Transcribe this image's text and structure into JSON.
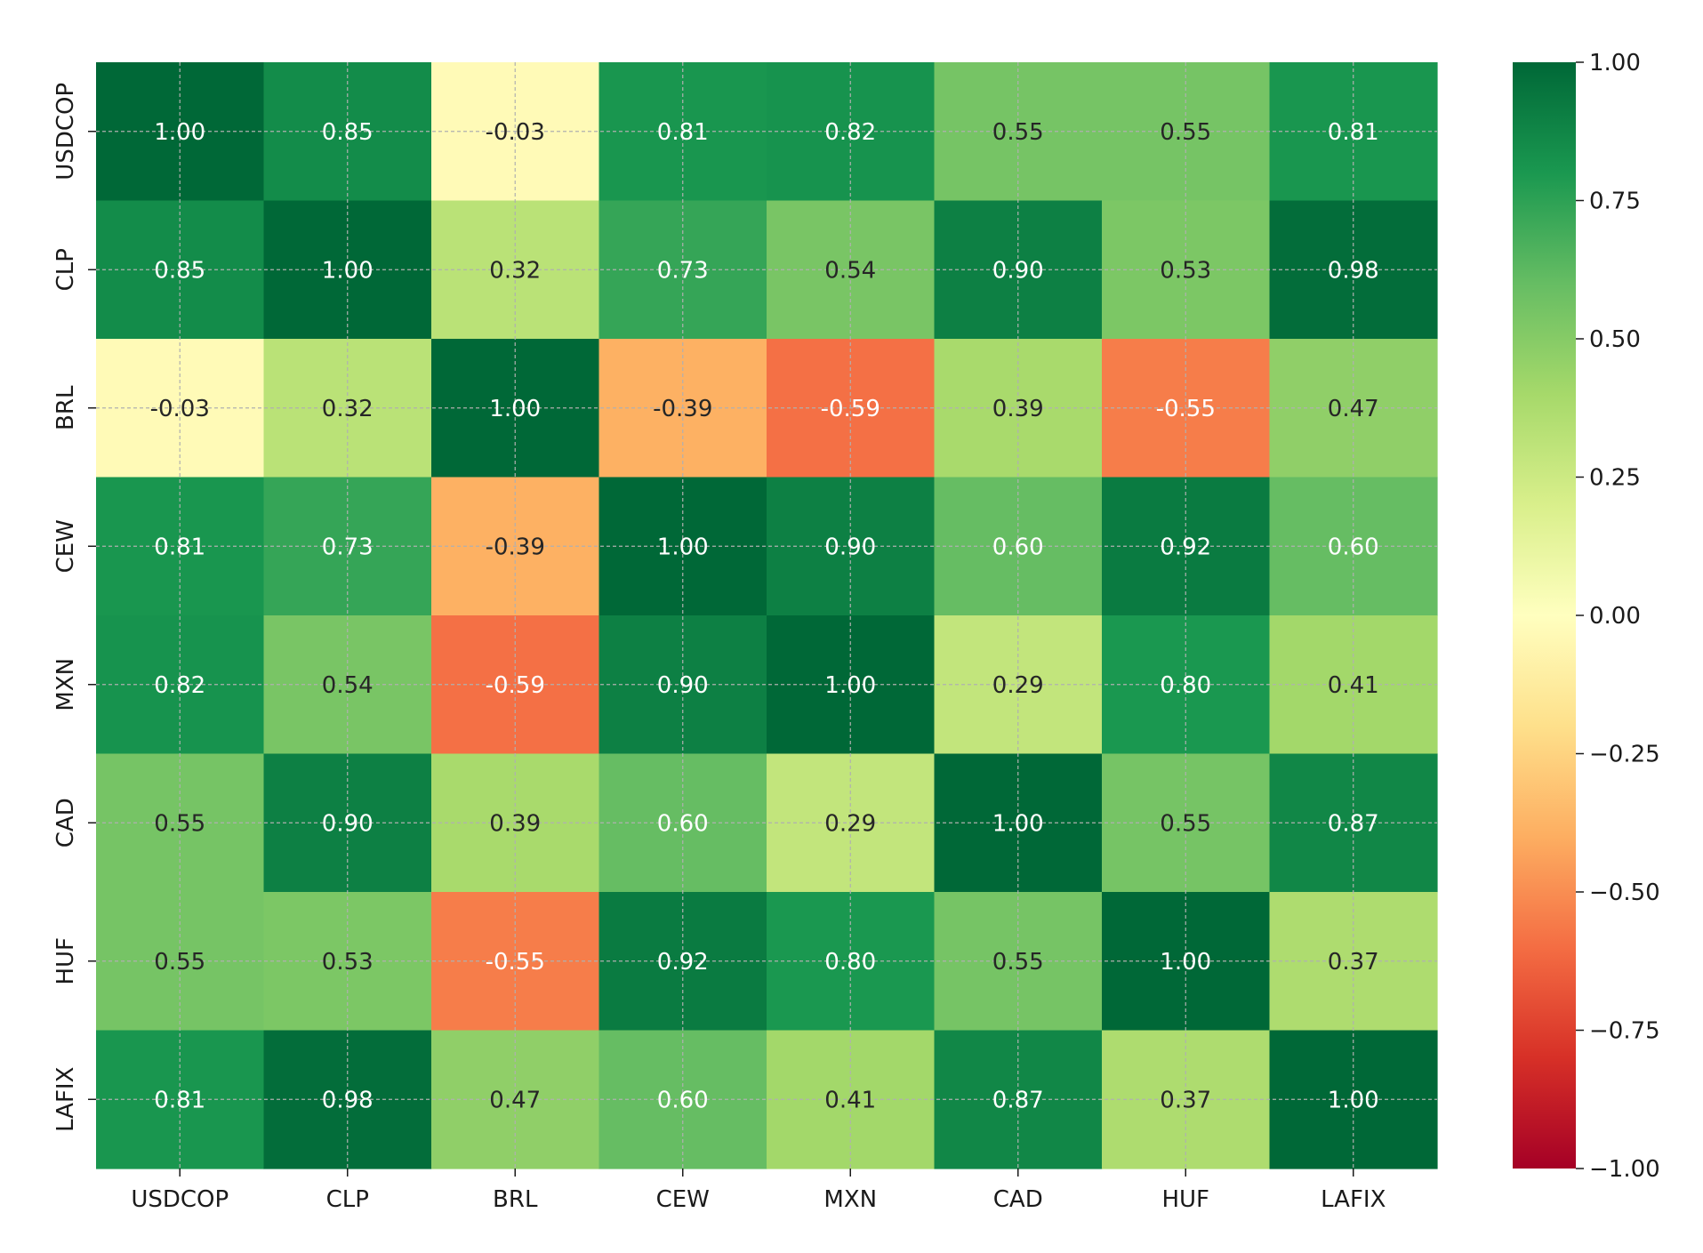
{
  "chart_data": {
    "type": "heatmap",
    "title": "",
    "xlabel": "",
    "ylabel": "",
    "x_labels": [
      "USDCOP",
      "CLP",
      "BRL",
      "CEW",
      "MXN",
      "CAD",
      "HUF",
      "LAFIX"
    ],
    "y_labels": [
      "USDCOP",
      "CLP",
      "BRL",
      "CEW",
      "MXN",
      "CAD",
      "HUF",
      "LAFIX"
    ],
    "values": [
      [
        1.0,
        0.85,
        -0.03,
        0.81,
        0.82,
        0.55,
        0.55,
        0.81
      ],
      [
        0.85,
        1.0,
        0.32,
        0.73,
        0.54,
        0.9,
        0.53,
        0.98
      ],
      [
        -0.03,
        0.32,
        1.0,
        -0.39,
        -0.59,
        0.39,
        -0.55,
        0.47
      ],
      [
        0.81,
        0.73,
        -0.39,
        1.0,
        0.9,
        0.6,
        0.92,
        0.6
      ],
      [
        0.82,
        0.54,
        -0.59,
        0.9,
        1.0,
        0.29,
        0.8,
        0.41
      ],
      [
        0.55,
        0.9,
        0.39,
        0.6,
        0.29,
        1.0,
        0.55,
        0.87
      ],
      [
        0.55,
        0.53,
        -0.55,
        0.92,
        0.8,
        0.55,
        1.0,
        0.37
      ],
      [
        0.81,
        0.98,
        0.47,
        0.6,
        0.41,
        0.87,
        0.37,
        1.0
      ]
    ],
    "annotation_format": "0.00",
    "colormap": "RdYlGn",
    "colorbar": {
      "range": [
        -1.0,
        1.0
      ],
      "ticks": [
        1.0,
        0.75,
        0.5,
        0.25,
        0.0,
        -0.25,
        -0.5,
        -0.75,
        -1.0
      ],
      "tick_labels": [
        "1.00",
        "0.75",
        "0.50",
        "0.25",
        "0.00",
        "−0.25",
        "−0.50",
        "−0.75",
        "−1.00"
      ]
    },
    "grid": true,
    "colors": {
      "text_dark": "#262626",
      "text_light": "#ffffff",
      "grid_line": "#b0b0b0"
    }
  }
}
